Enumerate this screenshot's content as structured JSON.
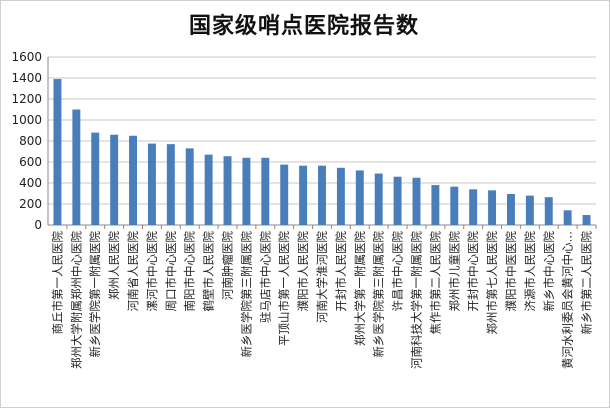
{
  "chart_data": {
    "type": "bar",
    "title": "国家级哨点医院报告数",
    "xlabel": "",
    "ylabel": "",
    "ylim": [
      0,
      1600
    ],
    "yticks": [
      0,
      200,
      400,
      600,
      800,
      1000,
      1200,
      1400,
      1600
    ],
    "grid": true,
    "legend": "none",
    "bar_color": "#4a7ebb",
    "categories": [
      "商丘市第一人民医院",
      "郑州大学附属郑州中心医院",
      "新乡医学院第一附属医院",
      "郑州人民医院",
      "河南省人民医院",
      "漯河市中心医院",
      "周口市中心医院",
      "南阳市中心医院",
      "鹤壁市人民医院",
      "河南肿瘤医院",
      "新乡医学院第三附属医院",
      "驻马店市中心医院",
      "平顶山市第一人民医院",
      "濮阳市人民医院",
      "河南大学淮河医院",
      "开封市人民医院",
      "郑州大学第一附属医院",
      "新乡医学院第三附属医院",
      "许昌市中心医院",
      "河南科技大学第一附属医院",
      "焦作市第二人民医院",
      "郑州市儿童医院",
      "开封市中心医院",
      "郑州市第七人民医院",
      "濮阳市中医医院",
      "济源市人民医院",
      "新乡市中心医院",
      "黄河水利委员会黄河中心…",
      "新乡市第二人民医院"
    ],
    "values": [
      1390,
      1100,
      880,
      860,
      850,
      775,
      770,
      730,
      670,
      655,
      640,
      640,
      575,
      565,
      565,
      545,
      520,
      490,
      460,
      450,
      380,
      365,
      340,
      330,
      295,
      280,
      265,
      140,
      95
    ]
  }
}
